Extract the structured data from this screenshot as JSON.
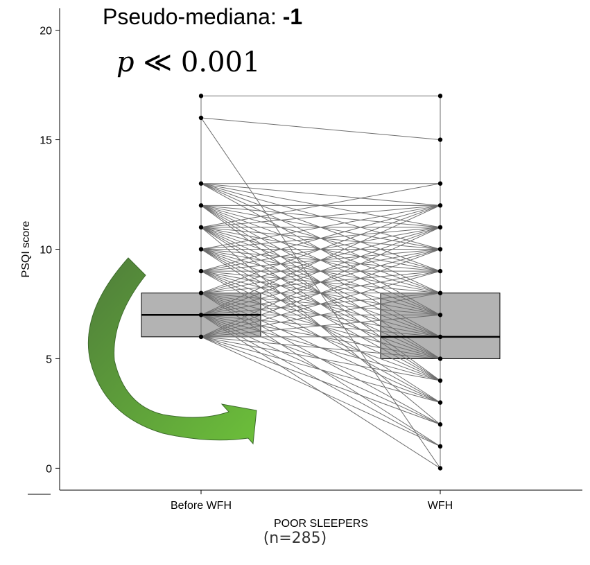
{
  "annotations": {
    "pseudo_median_label": "Pseudo-mediana:",
    "pseudo_median_value": "-1",
    "p_symbol": "p",
    "p_relation": "≪",
    "p_value": "0.001",
    "sample_size": "(n=285)"
  },
  "chart_data": {
    "type": "box",
    "xlabel": "POOR SLEEPERS",
    "ylabel": "PSQI score",
    "categories": [
      "Before WFH",
      "WFH"
    ],
    "ylim": [
      -1,
      21
    ],
    "yticks": [
      0,
      5,
      10,
      15,
      20
    ],
    "grid": false,
    "boxes": [
      {
        "category": "Before WFH",
        "q1": 6,
        "median": 7,
        "q3": 8
      },
      {
        "category": "WFH",
        "q1": 5,
        "median": 6,
        "q3": 8
      }
    ],
    "points_before": [
      6,
      7,
      8,
      9,
      10,
      11,
      12,
      13,
      16,
      17
    ],
    "points_wfh": [
      0,
      1,
      2,
      3,
      4,
      5,
      6,
      7,
      8,
      9,
      10,
      11,
      12,
      13,
      15,
      17
    ],
    "paired_lines": [
      [
        17,
        17
      ],
      [
        16,
        15
      ],
      [
        16,
        0
      ],
      [
        13,
        13
      ],
      [
        13,
        12
      ],
      [
        13,
        11
      ],
      [
        13,
        10
      ],
      [
        13,
        9
      ],
      [
        13,
        8
      ],
      [
        13,
        7
      ],
      [
        12,
        12
      ],
      [
        12,
        11
      ],
      [
        12,
        10
      ],
      [
        12,
        9
      ],
      [
        12,
        8
      ],
      [
        12,
        7
      ],
      [
        12,
        6
      ],
      [
        12,
        5
      ],
      [
        12,
        4
      ],
      [
        11,
        13
      ],
      [
        11,
        12
      ],
      [
        11,
        11
      ],
      [
        11,
        10
      ],
      [
        11,
        9
      ],
      [
        11,
        8
      ],
      [
        11,
        7
      ],
      [
        11,
        6
      ],
      [
        11,
        5
      ],
      [
        11,
        4
      ],
      [
        11,
        2
      ],
      [
        10,
        12
      ],
      [
        10,
        11
      ],
      [
        10,
        10
      ],
      [
        10,
        9
      ],
      [
        10,
        8
      ],
      [
        10,
        7
      ],
      [
        10,
        6
      ],
      [
        10,
        5
      ],
      [
        10,
        4
      ],
      [
        10,
        3
      ],
      [
        9,
        12
      ],
      [
        9,
        11
      ],
      [
        9,
        10
      ],
      [
        9,
        9
      ],
      [
        9,
        8
      ],
      [
        9,
        7
      ],
      [
        9,
        6
      ],
      [
        9,
        5
      ],
      [
        9,
        4
      ],
      [
        9,
        3
      ],
      [
        8,
        12
      ],
      [
        8,
        11
      ],
      [
        8,
        10
      ],
      [
        8,
        9
      ],
      [
        8,
        8
      ],
      [
        8,
        7
      ],
      [
        8,
        6
      ],
      [
        8,
        5
      ],
      [
        8,
        4
      ],
      [
        8,
        3
      ],
      [
        8,
        2
      ],
      [
        8,
        1
      ],
      [
        7,
        12
      ],
      [
        7,
        11
      ],
      [
        7,
        10
      ],
      [
        7,
        9
      ],
      [
        7,
        8
      ],
      [
        7,
        7
      ],
      [
        7,
        6
      ],
      [
        7,
        5
      ],
      [
        7,
        4
      ],
      [
        7,
        3
      ],
      [
        7,
        2
      ],
      [
        7,
        1
      ],
      [
        7,
        0
      ],
      [
        6,
        11
      ],
      [
        6,
        10
      ],
      [
        6,
        9
      ],
      [
        6,
        8
      ],
      [
        6,
        7
      ],
      [
        6,
        6
      ],
      [
        6,
        5
      ],
      [
        6,
        4
      ],
      [
        6,
        3
      ],
      [
        6,
        2
      ],
      [
        6,
        1
      ]
    ],
    "colors": {
      "box_fill": "#b3b3b3",
      "line": "#6e6e6e",
      "point": "#000000",
      "arrow_dark": "#4f7d3a",
      "arrow_light": "#6cbf3a"
    }
  }
}
